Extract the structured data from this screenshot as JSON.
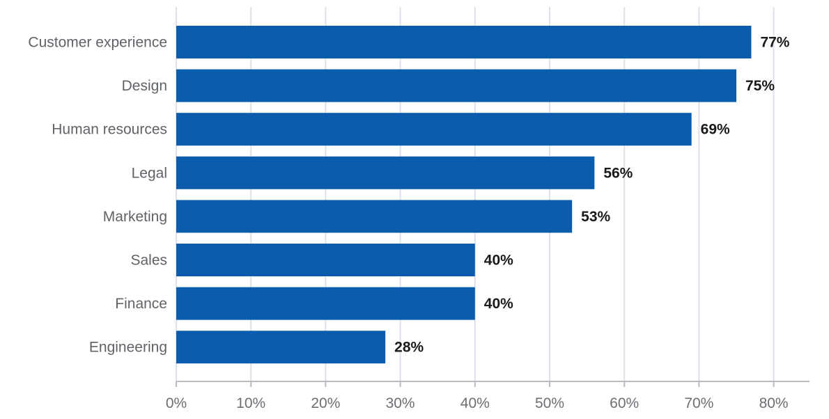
{
  "chart_data": {
    "type": "bar",
    "orientation": "horizontal",
    "categories": [
      "Customer experience",
      "Design",
      "Human resources",
      "Legal",
      "Marketing",
      "Sales",
      "Finance",
      "Engineering"
    ],
    "values": [
      77,
      75,
      69,
      56,
      53,
      40,
      40,
      28
    ],
    "data_labels": [
      "77%",
      "75%",
      "69%",
      "56%",
      "53%",
      "40%",
      "40%",
      "28%"
    ],
    "x_ticks": [
      0,
      10,
      20,
      30,
      40,
      50,
      60,
      70,
      80
    ],
    "x_tick_labels": [
      "0%",
      "10%",
      "20%",
      "30%",
      "40%",
      "50%",
      "60%",
      "70%",
      "80%"
    ],
    "xlim": [
      0,
      85
    ],
    "grid": "vertical",
    "title": "",
    "xlabel": "",
    "ylabel": "",
    "colors": {
      "bar": "#0b5cad",
      "grid": "#dce3ea",
      "axis": "#b8bcc0"
    }
  }
}
